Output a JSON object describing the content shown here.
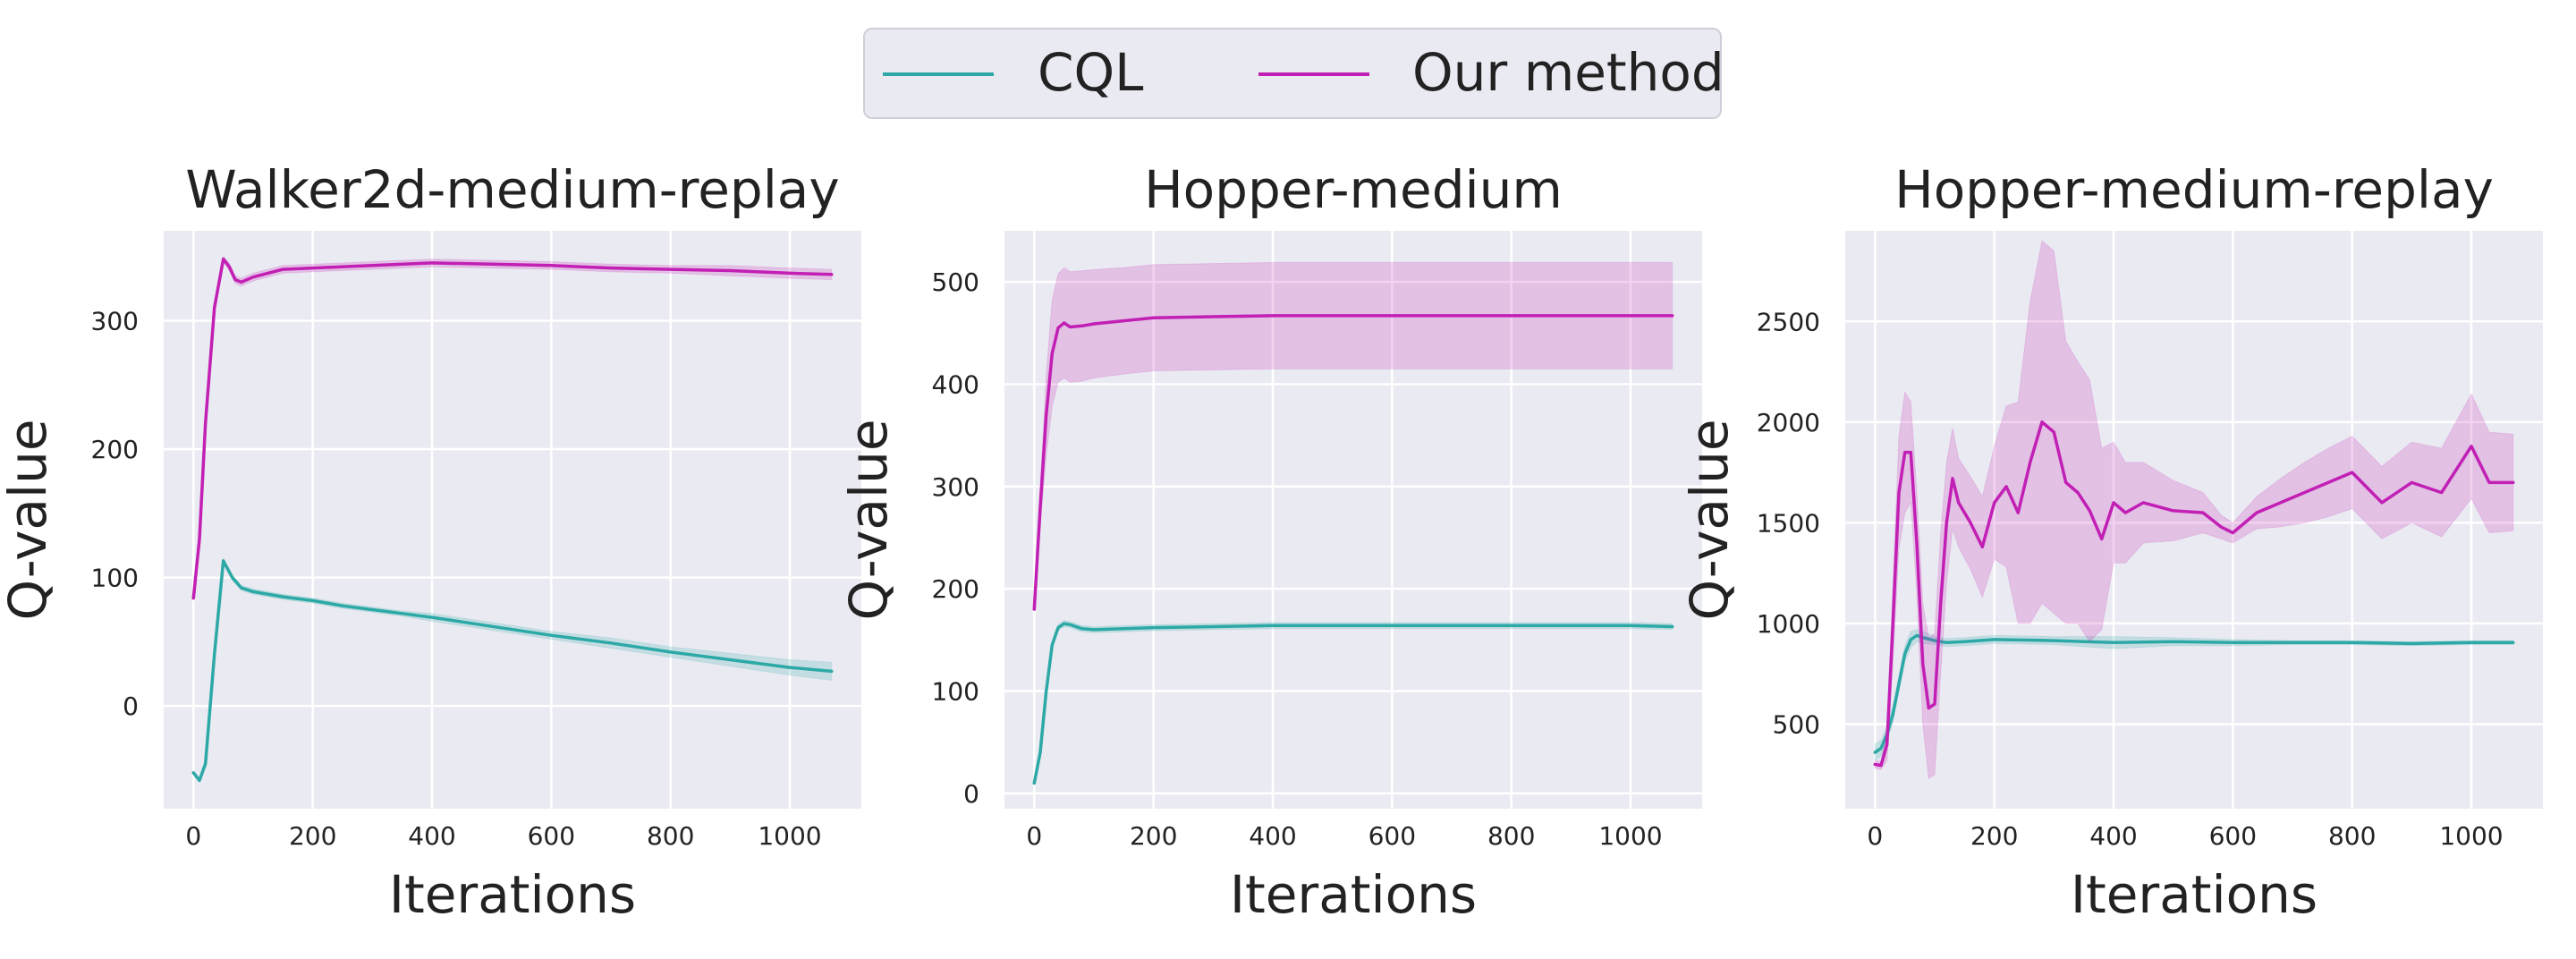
{
  "legend": {
    "cql_label": "CQL",
    "ours_label": "Our method"
  },
  "colors": {
    "cql": "#2ca9a6",
    "ours": "#c21fb4",
    "panel_bg": "#eaeaf2",
    "grid": "#ffffff",
    "text": "#222222"
  },
  "chart_data": [
    {
      "type": "line",
      "title": "Walker2d-medium-replay",
      "xlabel": "Iterations",
      "ylabel": "Q-value",
      "xlim": [
        -50,
        1120
      ],
      "ylim": [
        -80,
        370
      ],
      "xticks": [
        0,
        200,
        400,
        600,
        800,
        1000
      ],
      "yticks": [
        0,
        100,
        200,
        300
      ],
      "grid": true,
      "series": [
        {
          "name": "CQL",
          "x": [
            0,
            10,
            20,
            35,
            50,
            65,
            80,
            100,
            150,
            200,
            250,
            300,
            350,
            400,
            500,
            600,
            700,
            800,
            900,
            1000,
            1070
          ],
          "y": [
            -52,
            -58,
            -45,
            40,
            113,
            100,
            92,
            89,
            85,
            82,
            78,
            75,
            72,
            69,
            62,
            55,
            49,
            42,
            36,
            30,
            27
          ],
          "band": [
            0,
            0,
            0,
            0,
            2,
            2,
            2,
            2,
            2,
            2,
            2,
            2,
            2,
            3,
            3,
            3,
            4,
            4,
            5,
            6,
            7
          ]
        },
        {
          "name": "Our method",
          "x": [
            0,
            10,
            20,
            35,
            50,
            60,
            70,
            80,
            100,
            150,
            200,
            300,
            400,
            500,
            600,
            700,
            800,
            900,
            1000,
            1070
          ],
          "y": [
            84,
            130,
            220,
            310,
            348,
            342,
            332,
            330,
            334,
            340,
            341,
            343,
            345,
            344,
            343,
            341,
            340,
            339,
            337,
            336
          ],
          "band": [
            0,
            0,
            0,
            0,
            2,
            3,
            3,
            3,
            3,
            3,
            3,
            3,
            3,
            3,
            3,
            3,
            3,
            4,
            4,
            4
          ]
        }
      ]
    },
    {
      "type": "line",
      "title": "Hopper-medium",
      "xlabel": "Iterations",
      "ylabel": "Q-value",
      "xlim": [
        -50,
        1120
      ],
      "ylim": [
        -15,
        550
      ],
      "xticks": [
        0,
        200,
        400,
        600,
        800,
        1000
      ],
      "yticks": [
        0,
        100,
        200,
        300,
        400,
        500
      ],
      "grid": true,
      "series": [
        {
          "name": "CQL",
          "x": [
            0,
            10,
            20,
            30,
            40,
            50,
            60,
            80,
            100,
            150,
            200,
            300,
            400,
            500,
            600,
            700,
            800,
            900,
            1000,
            1070
          ],
          "y": [
            10,
            40,
            100,
            145,
            162,
            166,
            165,
            161,
            160,
            161,
            162,
            163,
            164,
            164,
            164,
            164,
            164,
            164,
            164,
            163
          ],
          "band": [
            0,
            0,
            0,
            0,
            3,
            3,
            3,
            3,
            3,
            3,
            3,
            3,
            3,
            3,
            3,
            3,
            3,
            3,
            3,
            3
          ]
        },
        {
          "name": "Our method",
          "x": [
            0,
            10,
            20,
            30,
            40,
            50,
            60,
            80,
            100,
            150,
            200,
            300,
            400,
            500,
            600,
            700,
            800,
            900,
            1000,
            1070
          ],
          "y": [
            180,
            280,
            370,
            430,
            455,
            460,
            456,
            457,
            459,
            462,
            465,
            466,
            467,
            467,
            467,
            467,
            467,
            467,
            467,
            467
          ],
          "band": [
            0,
            20,
            40,
            52,
            53,
            54,
            54,
            54,
            53,
            52,
            52,
            52,
            52,
            52,
            52,
            52,
            52,
            52,
            52,
            52
          ]
        }
      ]
    },
    {
      "type": "line",
      "title": "Hopper-medium-replay",
      "xlabel": "Iterations",
      "ylabel": "Q-value",
      "xlim": [
        -50,
        1120
      ],
      "ylim": [
        80,
        2950
      ],
      "xticks": [
        0,
        200,
        400,
        600,
        800,
        1000
      ],
      "yticks": [
        500,
        1000,
        1500,
        2000,
        2500
      ],
      "grid": true,
      "series": [
        {
          "name": "CQL",
          "x": [
            0,
            10,
            20,
            30,
            40,
            50,
            60,
            70,
            80,
            100,
            120,
            150,
            200,
            300,
            400,
            500,
            600,
            700,
            800,
            900,
            1000,
            1070
          ],
          "y": [
            360,
            380,
            450,
            550,
            700,
            850,
            920,
            940,
            930,
            915,
            905,
            910,
            920,
            915,
            905,
            910,
            905,
            905,
            905,
            900,
            905,
            905
          ],
          "band": [
            40,
            40,
            40,
            40,
            40,
            40,
            40,
            30,
            30,
            20,
            20,
            20,
            20,
            20,
            30,
            20,
            15,
            10,
            10,
            10,
            10,
            10
          ]
        },
        {
          "name": "Our method",
          "x": [
            0,
            10,
            20,
            30,
            40,
            50,
            60,
            70,
            80,
            90,
            100,
            110,
            120,
            130,
            140,
            160,
            180,
            200,
            220,
            240,
            260,
            280,
            300,
            320,
            340,
            360,
            380,
            400,
            420,
            450,
            500,
            550,
            580,
            600,
            640,
            680,
            720,
            760,
            800,
            850,
            900,
            950,
            1000,
            1030,
            1070
          ],
          "y": [
            300,
            295,
            400,
            1000,
            1650,
            1850,
            1850,
            1400,
            800,
            580,
            600,
            1100,
            1500,
            1720,
            1600,
            1500,
            1380,
            1600,
            1680,
            1550,
            1800,
            2000,
            1950,
            1700,
            1650,
            1560,
            1420,
            1600,
            1550,
            1600,
            1560,
            1550,
            1480,
            1450,
            1550,
            1600,
            1650,
            1700,
            1750,
            1600,
            1700,
            1650,
            1880,
            1700,
            1700
          ],
          "band": [
            20,
            20,
            80,
            200,
            280,
            300,
            250,
            250,
            300,
            350,
            350,
            350,
            300,
            250,
            220,
            230,
            250,
            280,
            400,
            550,
            800,
            900,
            900,
            700,
            650,
            650,
            450,
            300,
            250,
            200,
            150,
            100,
            60,
            50,
            80,
            120,
            150,
            170,
            180,
            180,
            200,
            220,
            260,
            250,
            240
          ]
        }
      ]
    }
  ]
}
